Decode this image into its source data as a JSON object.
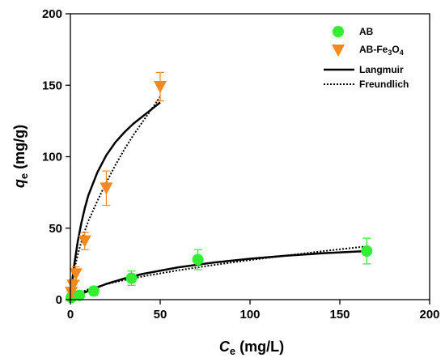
{
  "chart_data": {
    "type": "scatter",
    "xlabel": "C",
    "xlabel_sub": "e",
    "xlabel_unit": " (mg/L)",
    "ylabel": "q",
    "ylabel_sub": "e",
    "ylabel_unit": " (mg/g)",
    "xlim": [
      0,
      200
    ],
    "ylim": [
      0,
      200
    ],
    "x_ticks": [
      "0",
      "50",
      "100",
      "150",
      "200"
    ],
    "y_ticks": [
      "0",
      "50",
      "100",
      "150",
      "200"
    ],
    "grid": false,
    "legend_position": "top-right",
    "series": [
      {
        "name": "AB",
        "kind": "points",
        "marker": "circle",
        "color": "#33ee33",
        "points": [
          {
            "x": 0.5,
            "y": 1.5,
            "err": 1.5
          },
          {
            "x": 5,
            "y": 3,
            "err": 2
          },
          {
            "x": 13,
            "y": 6,
            "err": 3
          },
          {
            "x": 34,
            "y": 15,
            "err": 5
          },
          {
            "x": 71,
            "y": 28,
            "err": 7
          },
          {
            "x": 165,
            "y": 34,
            "err": 9
          }
        ]
      },
      {
        "name": "AB-Fe₃O₄",
        "name_parts": [
          "AB-Fe",
          "3",
          "O",
          "4"
        ],
        "kind": "points",
        "marker": "triangle-down",
        "color": "#f5891f",
        "points": [
          {
            "x": 0.5,
            "y": 5,
            "err": 3
          },
          {
            "x": 1.5,
            "y": 10,
            "err": 4
          },
          {
            "x": 3,
            "y": 18,
            "err": 5
          },
          {
            "x": 8,
            "y": 41,
            "err": 6
          },
          {
            "x": 20,
            "y": 78,
            "err": 12
          },
          {
            "x": 50,
            "y": 149,
            "err": 10
          }
        ]
      },
      {
        "name": "Langmuir",
        "kind": "line",
        "style": "solid",
        "color": "#000000",
        "curves": [
          {
            "x": [
              0,
              1,
              2,
              4,
              6,
              8,
              10,
              15,
              20,
              25,
              30,
              35,
              40,
              45,
              50
            ],
            "y": [
              0,
              12.5,
              23,
              40,
              53,
              64,
              73,
              89,
              101,
              110,
              117,
              123,
              128,
              133,
              138
            ]
          },
          {
            "x": [
              0,
              5,
              10,
              20,
              30,
              40,
              60,
              80,
              100,
              120,
              140,
              165
            ],
            "y": [
              0,
              3.3,
              6.2,
              11,
              14.8,
              17.9,
              22.6,
              26,
              28.6,
              30.7,
              32.4,
              34
            ]
          }
        ]
      },
      {
        "name": "Freundlich",
        "kind": "line",
        "style": "dotted",
        "color": "#000000",
        "curves": [
          {
            "x": [
              0,
              1,
              2,
              4,
              6,
              8,
              10,
              15,
              20,
              25,
              30,
              35,
              40,
              45,
              50
            ],
            "y": [
              0,
              12.6,
              20,
              31,
              40,
              48,
              55,
              69,
              82,
              94,
              105,
              115,
              124,
              133,
              142
            ]
          },
          {
            "x": [
              0,
              5,
              10,
              20,
              30,
              40,
              60,
              80,
              100,
              120,
              140,
              165
            ],
            "y": [
              0,
              4.8,
              7.2,
              10.8,
              13.7,
              16.2,
              20.5,
              24.3,
              27.7,
              30.8,
              33.8,
              37.3
            ]
          }
        ]
      }
    ]
  }
}
